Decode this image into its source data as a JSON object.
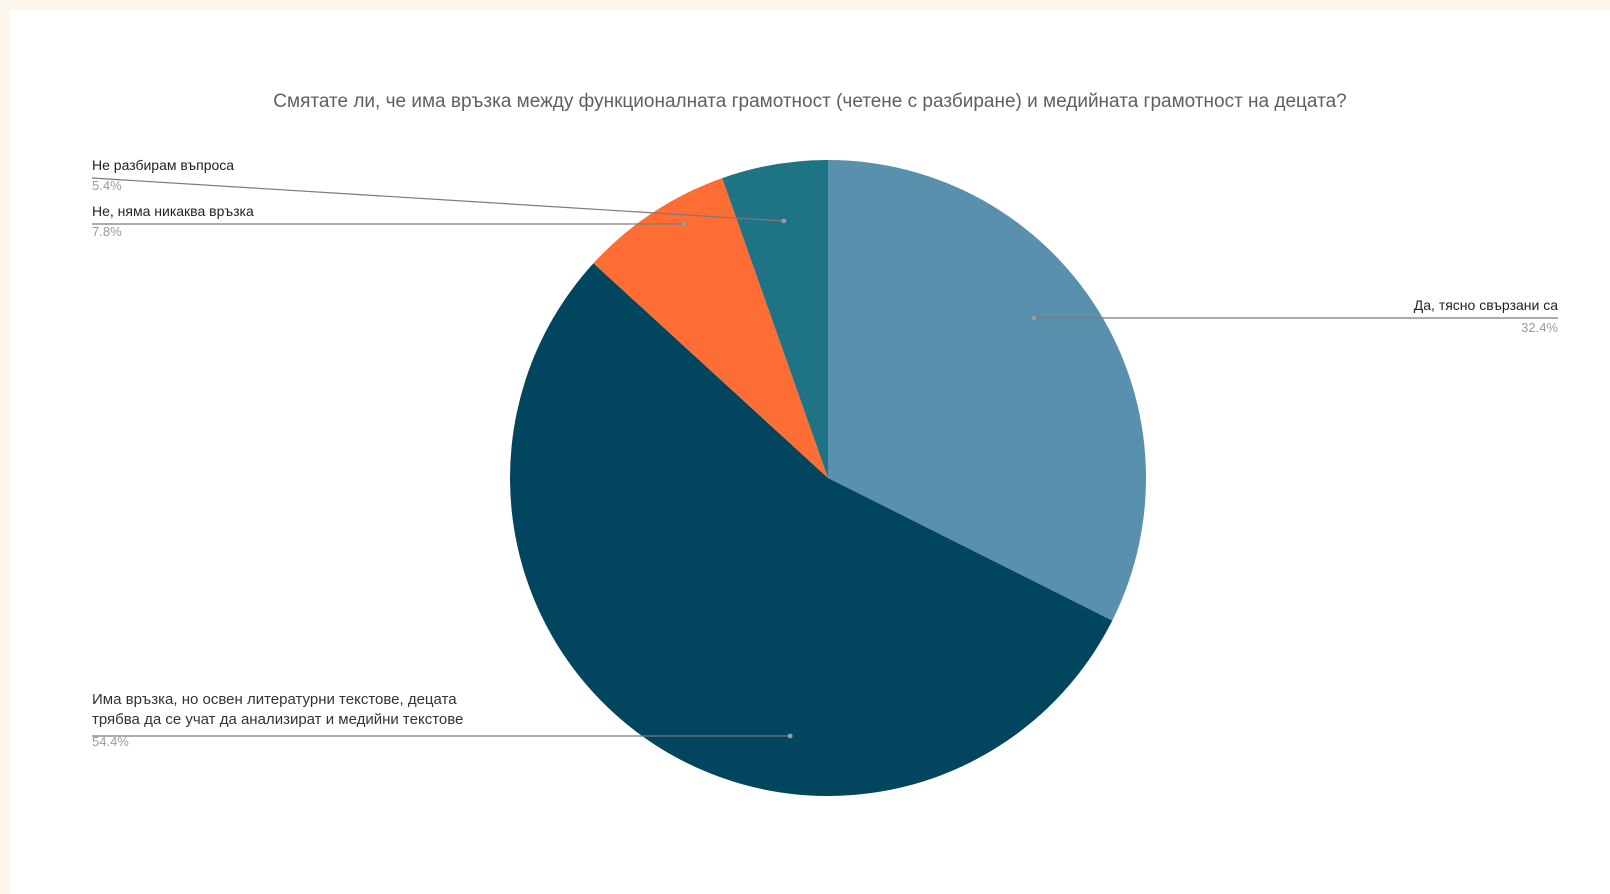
{
  "chart_data": {
    "type": "pie",
    "title": "Смятате ли, че има връзка между функционалната грамотност (четене с разбиране) и медийната грамотност на децата?",
    "slices": [
      {
        "label": "Да, тясно свързани са",
        "label_lines": [
          "Да, тясно свързани са"
        ],
        "percent_label": "32.4%",
        "value": 32.4,
        "color": "#5990ae"
      },
      {
        "label": "Има връзка, но освен литературни текстове, децата трябва да се учат да анализират и медийни текстове",
        "label_lines": [
          "Има връзка, но освен литературни текстове, децата",
          "трябва да се учат да анализират и медийни текстове"
        ],
        "percent_label": "54.4%",
        "value": 54.4,
        "color": "#01455f"
      },
      {
        "label": "Не, няма никаква връзка",
        "label_lines": [
          "Не, няма никаква връзка"
        ],
        "percent_label": "7.8%",
        "value": 7.8,
        "color": "#fe6d33"
      },
      {
        "label": "Не разбирам въпроса",
        "label_lines": [
          "Не разбирам въпроса"
        ],
        "percent_label": "5.4%",
        "value": 5.4,
        "color": "#1e7384"
      }
    ],
    "start_angle": "12 o'clock",
    "direction": "clockwise",
    "legend": "none (labels with leader lines)"
  }
}
